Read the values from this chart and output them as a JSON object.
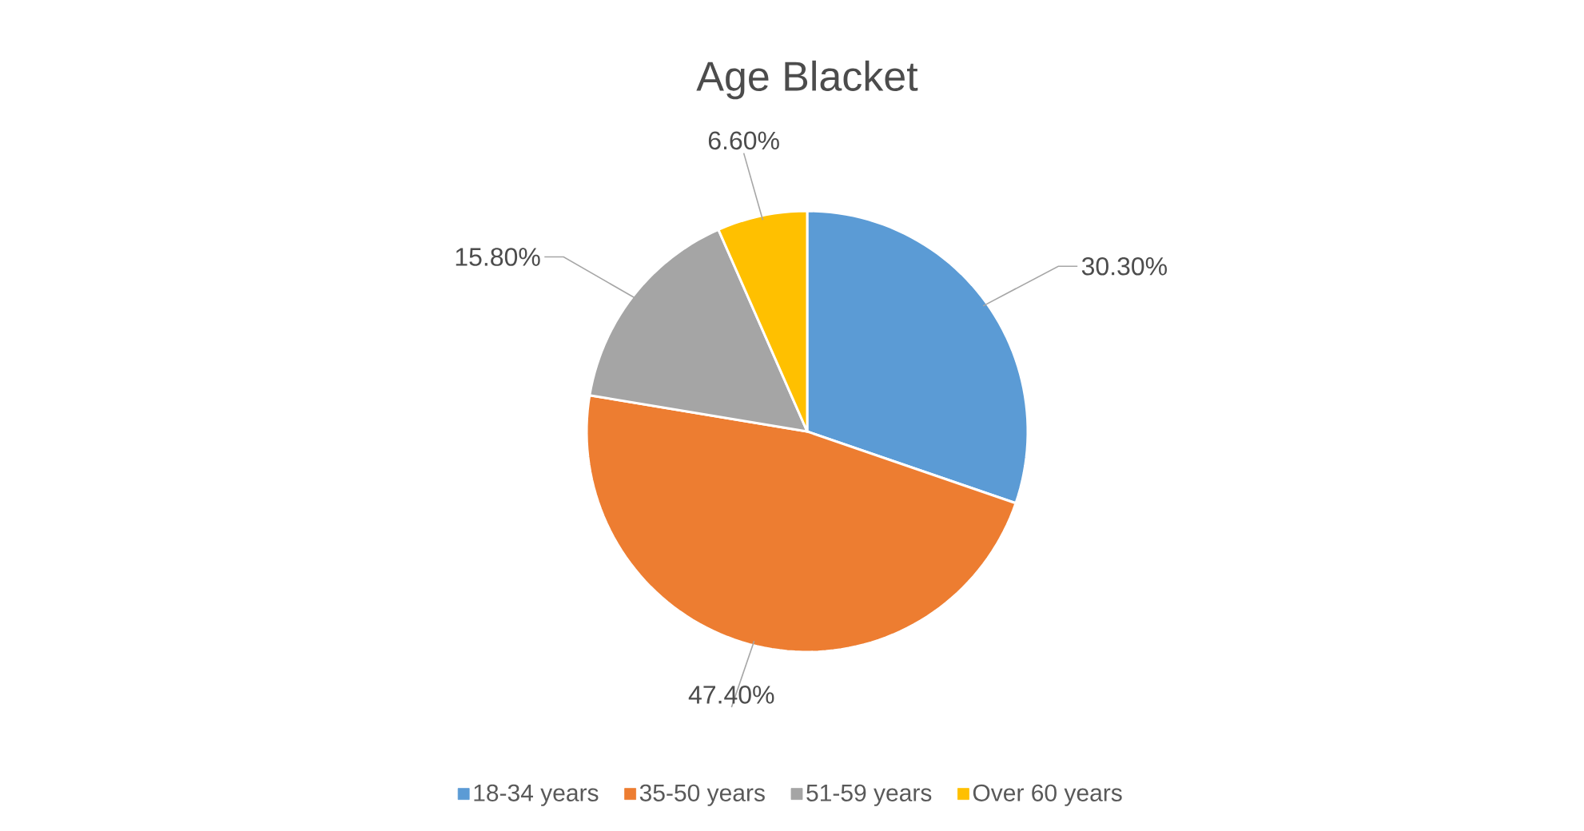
{
  "chart_data": {
    "type": "pie",
    "title": "Age Blacket",
    "categories": [
      "18-34 years",
      "35-50 years",
      "51-59 years",
      "Over 60 years"
    ],
    "values": [
      30.3,
      47.4,
      15.8,
      6.6
    ],
    "value_labels": [
      "30.30%",
      "47.40%",
      "15.80%",
      "6.60%"
    ],
    "colors": [
      "#5b9bd5",
      "#ed7d31",
      "#a5a5a5",
      "#ffc000"
    ],
    "legend": "bottom"
  }
}
